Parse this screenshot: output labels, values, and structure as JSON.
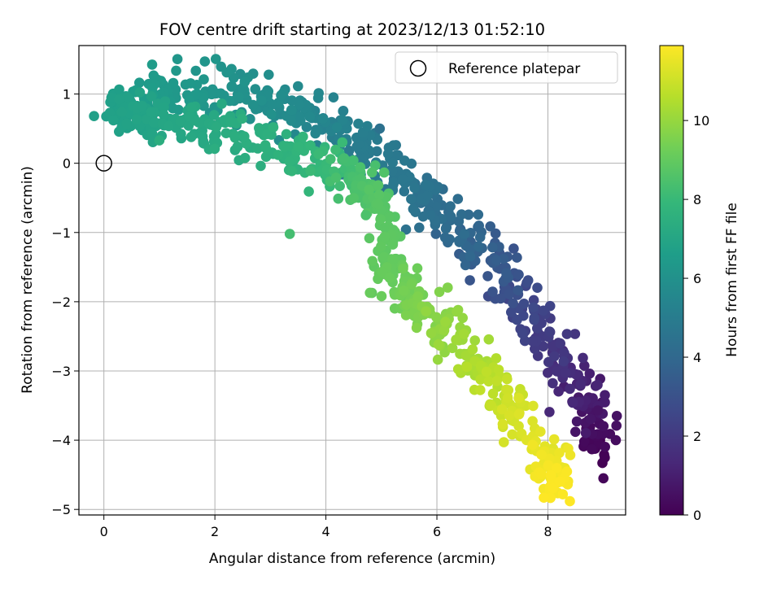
{
  "chart_data": {
    "type": "scatter",
    "title": "FOV centre drift starting at 2023/12/13 01:52:10",
    "xlabel": "Angular distance from reference (arcmin)",
    "ylabel": "Rotation from reference (arcmin)",
    "xlim": [
      -0.45,
      9.4
    ],
    "ylim": [
      -5.08,
      1.7
    ],
    "xticks": [
      0,
      2,
      4,
      6,
      8
    ],
    "yticks": [
      1,
      0,
      -1,
      -2,
      -3,
      -4,
      -5
    ],
    "grid": true,
    "legend": {
      "placement": "top-right",
      "entries": [
        "Reference platepar"
      ]
    },
    "reference_point": {
      "x": 0,
      "y": 0,
      "label": "Reference platepar"
    },
    "colorbar": {
      "label": "Hours from first FF file",
      "range": [
        0,
        11.9
      ],
      "ticks": [
        0,
        2,
        4,
        6,
        8,
        10
      ],
      "colormap": "viridis"
    },
    "color_stops": [
      "#440154",
      "#482878",
      "#3e4989",
      "#31688e",
      "#26828e",
      "#1f9e89",
      "#35b779",
      "#6ece58",
      "#b5de2b",
      "#fde725"
    ],
    "drift_path": [
      {
        "x": 8.95,
        "y": -4.15,
        "t": 0.0,
        "s": 0.15
      },
      {
        "x": 8.7,
        "y": -3.4,
        "t": 1.0,
        "s": 0.2
      },
      {
        "x": 8.0,
        "y": -2.6,
        "t": 2.0,
        "s": 0.22
      },
      {
        "x": 7.3,
        "y": -1.7,
        "t": 3.0,
        "s": 0.22
      },
      {
        "x": 6.4,
        "y": -1.0,
        "t": 4.0,
        "s": 0.22
      },
      {
        "x": 5.6,
        "y": -0.3,
        "t": 4.6,
        "s": 0.2
      },
      {
        "x": 4.6,
        "y": 0.3,
        "t": 5.0,
        "s": 0.2
      },
      {
        "x": 3.5,
        "y": 0.8,
        "t": 5.6,
        "s": 0.22
      },
      {
        "x": 2.4,
        "y": 1.0,
        "t": 6.0,
        "s": 0.22
      },
      {
        "x": 1.2,
        "y": 1.0,
        "t": 6.4,
        "s": 0.22
      },
      {
        "x": 0.2,
        "y": 0.8,
        "t": 6.7,
        "s": 0.15
      },
      {
        "x": 0.8,
        "y": 0.6,
        "t": 6.9,
        "s": 0.18
      },
      {
        "x": 2.0,
        "y": 0.5,
        "t": 7.2,
        "s": 0.2
      },
      {
        "x": 3.3,
        "y": 0.2,
        "t": 7.6,
        "s": 0.2
      },
      {
        "x": 4.4,
        "y": -0.1,
        "t": 8.2,
        "s": 0.2
      },
      {
        "x": 5.0,
        "y": -0.6,
        "t": 8.7,
        "s": 0.15
      },
      {
        "x": 5.1,
        "y": -1.6,
        "t": 9.0,
        "s": 0.15
      },
      {
        "x": 5.6,
        "y": -2.0,
        "t": 9.4,
        "s": 0.2
      },
      {
        "x": 6.4,
        "y": -2.6,
        "t": 10.1,
        "s": 0.2
      },
      {
        "x": 7.2,
        "y": -3.4,
        "t": 10.9,
        "s": 0.2
      },
      {
        "x": 8.0,
        "y": -4.3,
        "t": 11.6,
        "s": 0.18
      },
      {
        "x": 8.2,
        "y": -4.7,
        "t": 11.9,
        "s": 0.12
      }
    ],
    "sample_count": 1180,
    "outliers": [
      {
        "x": 3.35,
        "y": -1.02,
        "t": 8.3
      },
      {
        "x": 1.0,
        "y": 0.33,
        "t": 7.4
      },
      {
        "x": 4.72,
        "y": -0.75,
        "t": 8.5
      },
      {
        "x": 9.0,
        "y": -4.55,
        "t": 0.2
      },
      {
        "x": 8.9,
        "y": -3.57,
        "t": 0.6
      },
      {
        "x": 4.97,
        "y": 0.5,
        "t": 4.4
      }
    ]
  }
}
